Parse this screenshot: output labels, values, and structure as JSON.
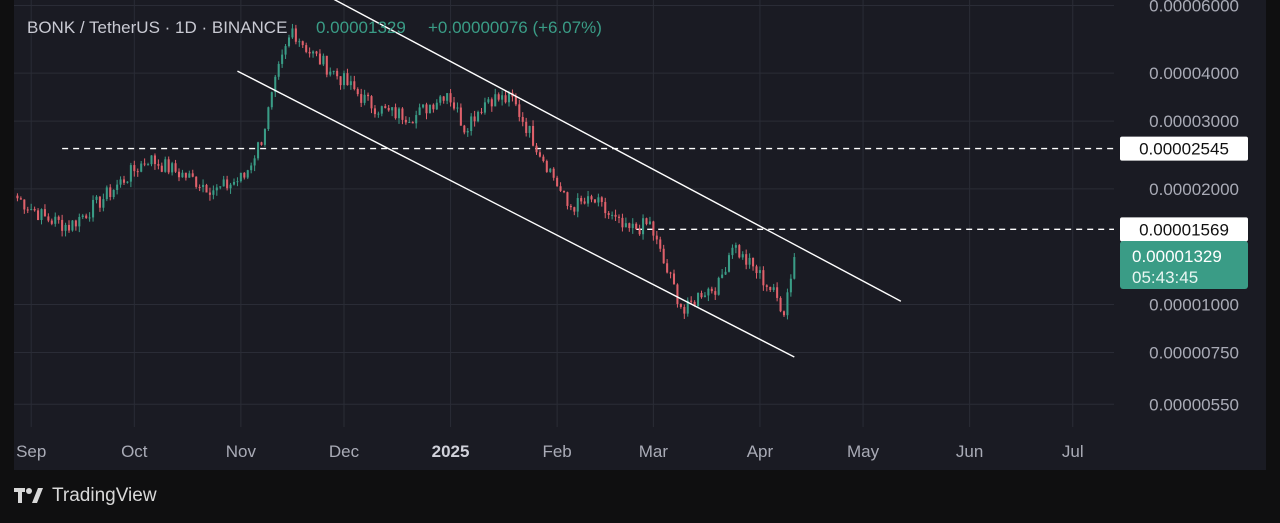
{
  "header": {
    "symbol_line": "BONK / TetherUS · 1D · BINANCE",
    "last_price": "0.00001329",
    "change": "+0.00000076 (+6.07%)"
  },
  "price_axis": {
    "ticks": [
      {
        "label": "0.00006000",
        "value": 6e-05
      },
      {
        "label": "0.00004000",
        "value": 4e-05
      },
      {
        "label": "0.00003000",
        "value": 3e-05
      },
      {
        "label": "0.00002000",
        "value": 2e-05
      },
      {
        "label": "0.00001000",
        "value": 1e-05
      },
      {
        "label": "0.00000750",
        "value": 7.5e-06
      },
      {
        "label": "0.00000550",
        "value": 5.5e-06
      }
    ]
  },
  "time_axis": {
    "ticks": [
      {
        "label": "Sep",
        "date": "2024-09-01",
        "bold": false
      },
      {
        "label": "Oct",
        "date": "2024-10-01",
        "bold": false
      },
      {
        "label": "Nov",
        "date": "2024-11-01",
        "bold": false
      },
      {
        "label": "Dec",
        "date": "2024-12-01",
        "bold": false
      },
      {
        "label": "2025",
        "date": "2025-01-01",
        "bold": true
      },
      {
        "label": "Feb",
        "date": "2025-02-01",
        "bold": false
      },
      {
        "label": "Mar",
        "date": "2025-03-01",
        "bold": false
      },
      {
        "label": "Apr",
        "date": "2025-04-01",
        "bold": false
      },
      {
        "label": "May",
        "date": "2025-05-01",
        "bold": false
      },
      {
        "label": "Jun",
        "date": "2025-06-01",
        "bold": false
      },
      {
        "label": "Jul",
        "date": "2025-07-01",
        "bold": false
      }
    ]
  },
  "levels": [
    {
      "label": "0.00002545",
      "value": 2.545e-05,
      "from": "2024-09-10"
    },
    {
      "label": "0.00001569",
      "value": 1.569e-05,
      "from": "2025-02-24"
    }
  ],
  "last_price_tag": {
    "price": "0.00001329",
    "countdown": "05:43:45",
    "color": "#3a9c86"
  },
  "colors": {
    "up": "#3a9c86",
    "down": "#e0616b",
    "background": "#1a1b23",
    "grid": "#2a2c36",
    "text": "#a9abb6"
  },
  "chart_data": {
    "type": "candlestick",
    "scale": "log",
    "x": [
      "2024-08-27",
      "2024-09-05",
      "2024-09-12",
      "2024-09-20",
      "2024-09-28",
      "2024-10-05",
      "2024-10-15",
      "2024-10-25",
      "2024-11-02",
      "2024-11-07",
      "2024-11-12",
      "2024-11-16",
      "2024-11-21",
      "2024-11-29",
      "2024-12-08",
      "2024-12-14",
      "2024-12-22",
      "2024-12-31",
      "2025-01-05",
      "2025-01-12",
      "2025-01-19",
      "2025-01-25",
      "2025-01-31",
      "2025-02-04",
      "2025-02-12",
      "2025-02-21",
      "2025-02-28",
      "2025-03-04",
      "2025-03-10",
      "2025-03-15",
      "2025-03-20",
      "2025-03-24",
      "2025-03-27",
      "2025-03-31",
      "2025-04-04",
      "2025-04-08",
      "2025-04-11"
    ],
    "close": [
      1.92e-05,
      1.68e-05,
      1.6e-05,
      1.82e-05,
      2.12e-05,
      2.4e-05,
      2.18e-05,
      1.98e-05,
      2.15e-05,
      2.7e-05,
      4.05e-05,
      5.2e-05,
      4.55e-05,
      3.95e-05,
      3.35e-05,
      3.15e-05,
      3.1e-05,
      3.6e-05,
      2.9e-05,
      3.45e-05,
      3.4e-05,
      2.7e-05,
      2.15e-05,
      1.8e-05,
      1.85e-05,
      1.55e-05,
      1.62e-05,
      1.28e-05,
      9.5e-06,
      1.08e-05,
      1.12e-05,
      1.45e-05,
      1.32e-05,
      1.22e-05,
      1.1e-05,
      9.7e-06,
      1.329e-05
    ],
    "time_range": [
      "2024-08-27",
      "2025-07-13"
    ],
    "ylim": [
      4.8e-06,
      6.2e-05
    ],
    "trendlines": [
      {
        "from": {
          "date": "2024-11-20",
          "price": 6.8e-05
        },
        "to": {
          "date": "2025-05-12",
          "price": 1.02e-05
        }
      },
      {
        "from": {
          "date": "2024-10-31",
          "price": 4.05e-05
        },
        "to": {
          "date": "2025-04-11",
          "price": 7.3e-06
        }
      }
    ]
  }
}
